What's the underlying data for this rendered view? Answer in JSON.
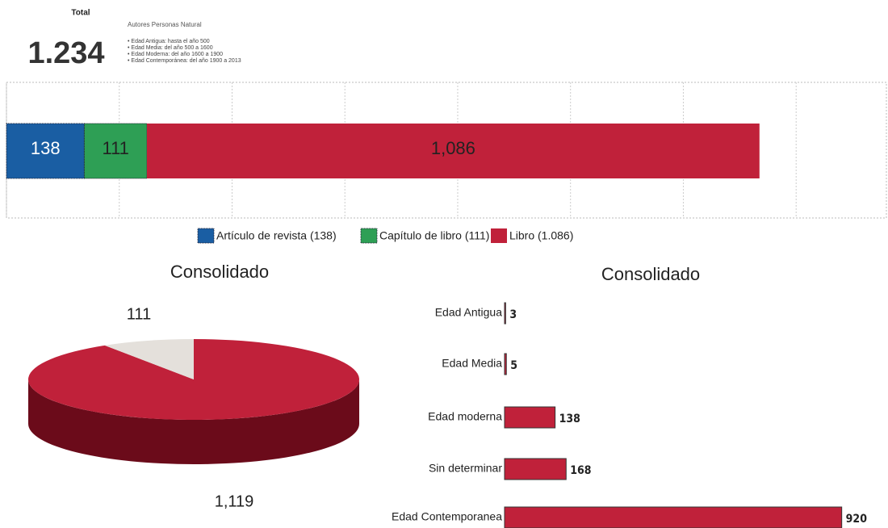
{
  "header": {
    "total_label": "Total",
    "total_value": "1.234",
    "subtitle": "Autores Personas Natural",
    "notes": [
      "• Edad Antigua: hasta el año 500",
      "• Edad Media: del año 500 a 1600",
      "• Edad Moderna: del año 1600 a 1900",
      "• Edad Contemporánea: del año 1900 a 2013"
    ]
  },
  "chart_data": [
    {
      "type": "stacked_bar",
      "orientation": "horizontal",
      "grid": true,
      "xlim": [
        0,
        1560
      ],
      "xticks": [
        0,
        200,
        400,
        600,
        800,
        1000,
        1200,
        1400
      ],
      "series": [
        {
          "name": "Artículo de revista (138)",
          "color": "#1a5ea3",
          "values": [
            138
          ],
          "value_labels": [
            "138"
          ]
        },
        {
          "name": "Capítulo de libro (111)",
          "color": "#2e9f55",
          "values": [
            111
          ],
          "value_labels": [
            "111"
          ]
        },
        {
          "name": "Libro (1.086)",
          "color": "#c0213a",
          "values": [
            1086
          ],
          "value_labels": [
            "1,086"
          ]
        }
      ]
    },
    {
      "type": "pie",
      "title": "Consolidado",
      "values": [
        1119,
        111
      ],
      "value_labels": [
        "1,119",
        "111"
      ],
      "colors": [
        "#c0213a",
        "#e4e0db"
      ],
      "side_color": "#6b0b1a"
    },
    {
      "type": "bar",
      "orientation": "horizontal",
      "title": "Consolidado",
      "categories": [
        "Edad Antigua",
        "Edad Media",
        "Edad moderna",
        "Sin determinar",
        "Edad Contemporanea"
      ],
      "values": [
        3,
        5,
        138,
        168,
        920
      ],
      "color": "#c0213a",
      "xlim": [
        0,
        1000
      ]
    }
  ]
}
